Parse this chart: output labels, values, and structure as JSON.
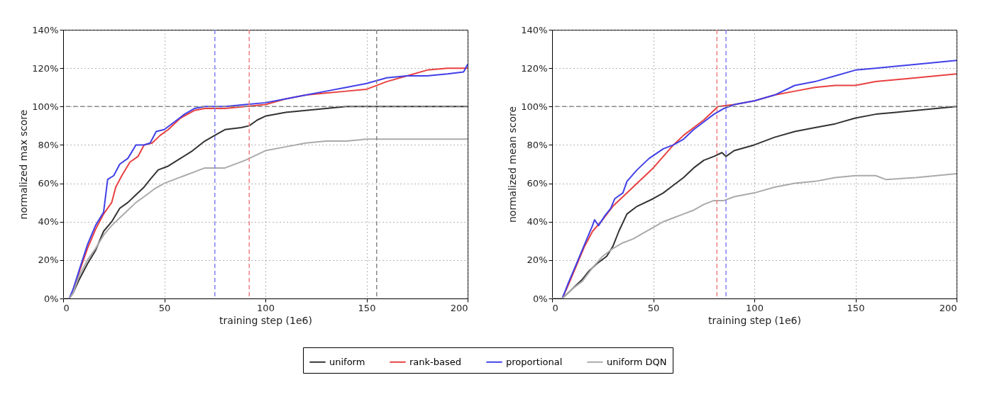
{
  "chart_data": [
    {
      "type": "line",
      "xlabel": "training step (1e6)",
      "ylabel": "normalized max score",
      "xlim": [
        0,
        200
      ],
      "ylim": [
        0,
        140
      ],
      "xticks": [
        0,
        50,
        100,
        150,
        200
      ],
      "yticks": [
        {
          "value": 0,
          "label": "0%"
        },
        {
          "value": 20,
          "label": "20%"
        },
        {
          "value": 40,
          "label": "40%"
        },
        {
          "value": 60,
          "label": "60%"
        },
        {
          "value": 80,
          "label": "80%"
        },
        {
          "value": 100,
          "label": "100%"
        },
        {
          "value": 120,
          "label": "120%"
        },
        {
          "value": 140,
          "label": "140%"
        }
      ],
      "grid": true,
      "legend": "bottom",
      "line_style": "solid",
      "series": [
        {
          "name": "uniform",
          "color": "#333333",
          "x": [
            0,
            3,
            5,
            8,
            12,
            16,
            20,
            24,
            28,
            32,
            36,
            40,
            43,
            47,
            52,
            58,
            64,
            70,
            75,
            80,
            88,
            92,
            96,
            100,
            110,
            120,
            130,
            140,
            200
          ],
          "values": [
            0,
            0,
            3,
            10,
            18,
            25,
            35,
            40,
            47,
            50,
            54,
            58,
            62,
            67,
            69,
            73,
            77,
            82,
            85,
            88,
            89,
            90,
            93,
            95,
            97,
            98,
            99,
            100,
            100
          ]
        },
        {
          "name": "rank-based",
          "color": "#e84040",
          "x": [
            5,
            8,
            12,
            16,
            20,
            24,
            26,
            29,
            33,
            37,
            40,
            44,
            48,
            52,
            58,
            65,
            70,
            80,
            90,
            100,
            110,
            120,
            130,
            140,
            150,
            160,
            170,
            180,
            190,
            200
          ],
          "values": [
            5,
            14,
            26,
            36,
            44,
            50,
            58,
            64,
            71,
            74,
            80,
            81,
            85,
            88,
            94,
            98,
            99,
            99,
            100,
            101,
            104,
            106,
            107,
            108,
            109,
            113,
            116,
            119,
            120,
            120
          ]
        },
        {
          "name": "proportional",
          "color": "#4040e8",
          "x": [
            0,
            3,
            5,
            8,
            12,
            16,
            20,
            22,
            25,
            28,
            32,
            36,
            40,
            43,
            46,
            50,
            55,
            60,
            65,
            70,
            80,
            90,
            100,
            110,
            120,
            130,
            140,
            150,
            160,
            170,
            180,
            190,
            198,
            200
          ],
          "values": [
            0,
            0,
            5,
            15,
            28,
            38,
            45,
            62,
            64,
            70,
            73,
            80,
            80,
            81,
            87,
            88,
            92,
            96,
            99,
            100,
            100,
            101,
            102,
            104,
            106,
            108,
            110,
            112,
            115,
            116,
            116,
            117,
            118,
            122
          ]
        },
        {
          "name": "uniform DQN",
          "color": "#aaaaaa",
          "x": [
            0,
            3,
            5,
            8,
            12,
            16,
            20,
            24,
            28,
            32,
            36,
            40,
            45,
            50,
            55,
            60,
            65,
            70,
            80,
            90,
            100,
            110,
            120,
            130,
            140,
            150,
            200
          ],
          "values": [
            0,
            0,
            3,
            12,
            20,
            26,
            33,
            38,
            42,
            46,
            50,
            53,
            57,
            60,
            62,
            64,
            66,
            68,
            68,
            72,
            77,
            79,
            81,
            82,
            82,
            83,
            83
          ]
        }
      ],
      "ref_lines": [
        {
          "axis": "y",
          "value": 100,
          "color": "#888888",
          "line_style": "dashed"
        },
        {
          "axis": "x",
          "value": 75,
          "color": "#8080f0",
          "line_style": "dashed"
        },
        {
          "axis": "x",
          "value": 92,
          "color": "#f08080",
          "line_style": "dashed"
        },
        {
          "axis": "x",
          "value": 155,
          "color": "#888888",
          "line_style": "dashed"
        }
      ]
    },
    {
      "type": "line",
      "xlabel": "training step (1e6)",
      "ylabel": "normalized mean score",
      "xlim": [
        0,
        200
      ],
      "ylim": [
        0,
        140
      ],
      "xticks": [
        0,
        50,
        100,
        150,
        200
      ],
      "yticks": [
        {
          "value": 0,
          "label": "0%"
        },
        {
          "value": 20,
          "label": "20%"
        },
        {
          "value": 40,
          "label": "40%"
        },
        {
          "value": 60,
          "label": "60%"
        },
        {
          "value": 80,
          "label": "80%"
        },
        {
          "value": 100,
          "label": "100%"
        },
        {
          "value": 120,
          "label": "120%"
        },
        {
          "value": 140,
          "label": "140%"
        }
      ],
      "grid": true,
      "legend": "bottom",
      "line_style": "solid",
      "series": [
        {
          "name": "uniform",
          "color": "#333333",
          "x": [
            0,
            5,
            10,
            15,
            18,
            22,
            27,
            30,
            33,
            37,
            42,
            50,
            55,
            60,
            65,
            70,
            75,
            80,
            84,
            86,
            90,
            100,
            110,
            120,
            130,
            140,
            150,
            160,
            170,
            180,
            200
          ],
          "values": [
            0,
            0,
            5,
            10,
            14,
            18,
            22,
            27,
            35,
            44,
            48,
            52,
            55,
            59,
            63,
            68,
            72,
            74,
            76,
            74,
            77,
            80,
            84,
            87,
            89,
            91,
            94,
            96,
            97,
            98,
            100
          ]
        },
        {
          "name": "rank-based",
          "color": "#e84040",
          "x": [
            0,
            5,
            8,
            12,
            16,
            20,
            25,
            30,
            35,
            40,
            45,
            50,
            55,
            60,
            65,
            70,
            75,
            80,
            82,
            90,
            100,
            110,
            120,
            130,
            140,
            150,
            160,
            180,
            200
          ],
          "values": [
            0,
            0,
            7,
            17,
            27,
            35,
            41,
            48,
            53,
            58,
            63,
            68,
            74,
            80,
            85,
            89,
            93,
            98,
            100,
            101,
            103,
            106,
            108,
            110,
            111,
            111,
            113,
            115,
            117
          ]
        },
        {
          "name": "proportional",
          "color": "#4040e8",
          "x": [
            0,
            5,
            8,
            12,
            16,
            20,
            21,
            23,
            26,
            29,
            31,
            35,
            37,
            42,
            48,
            55,
            60,
            65,
            70,
            75,
            80,
            85,
            90,
            100,
            110,
            120,
            130,
            140,
            150,
            160,
            180,
            200
          ],
          "values": [
            0,
            0,
            8,
            18,
            28,
            38,
            41,
            38,
            43,
            47,
            52,
            55,
            61,
            67,
            73,
            78,
            80,
            83,
            88,
            92,
            96,
            99,
            101,
            103,
            106,
            111,
            113,
            116,
            119,
            120,
            122,
            124
          ]
        },
        {
          "name": "uniform DQN",
          "color": "#aaaaaa",
          "x": [
            0,
            5,
            10,
            15,
            20,
            25,
            30,
            35,
            40,
            45,
            50,
            55,
            60,
            65,
            70,
            75,
            80,
            85,
            90,
            100,
            110,
            120,
            130,
            140,
            150,
            160,
            165,
            180,
            200
          ],
          "values": [
            0,
            0,
            5,
            9,
            16,
            22,
            26,
            29,
            31,
            34,
            37,
            40,
            42,
            44,
            46,
            49,
            51,
            51,
            53,
            55,
            58,
            60,
            61,
            63,
            64,
            64,
            62,
            63,
            65
          ]
        }
      ],
      "ref_lines": [
        {
          "axis": "y",
          "value": 100,
          "color": "#888888",
          "line_style": "dashed"
        },
        {
          "axis": "x",
          "value": 81.5,
          "color": "#f08080",
          "line_style": "dashed"
        },
        {
          "axis": "x",
          "value": 86,
          "color": "#8080f0",
          "line_style": "dashed"
        }
      ]
    }
  ]
}
